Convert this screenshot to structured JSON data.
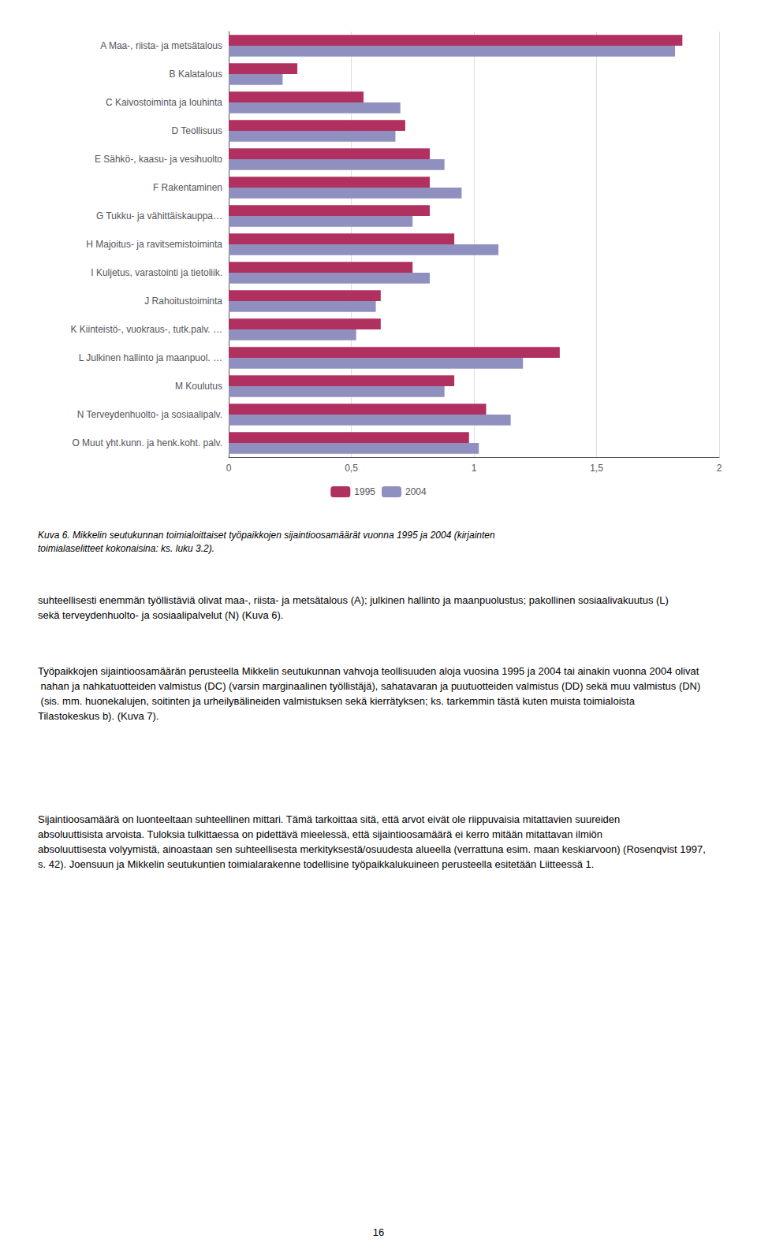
{
  "chart_data": {
    "type": "bar",
    "orientation": "horizontal",
    "categories": [
      "A Maa-, riista- ja metsätalous",
      "B Kalatalous",
      "C Kaivostoiminta ja louhinta",
      "D Teollisuus",
      "E Sähkö-, kaasu- ja vesihuolto",
      "F Rakentaminen",
      "G Tukku- ja vähittäiskauppa…",
      "H Majoitus- ja ravitsemistoiminta",
      "I Kuljetus, varastointi ja tietoliik.",
      "J Rahoitustoiminta",
      "K Kiinteistö-, vuokraus-, tutk.palv. …",
      "L Julkinen hallinto ja maanpuol. …",
      "M Koulutus",
      "N Terveydenhuolto- ja sosiaalipalv.",
      "O Muut yht.kunn. ja henk.koht. palv."
    ],
    "series": [
      {
        "name": "1995",
        "color": "#b03060",
        "values": [
          1.85,
          0.28,
          0.55,
          0.72,
          0.82,
          0.82,
          0.82,
          0.92,
          0.75,
          0.62,
          0.62,
          1.35,
          0.92,
          1.05,
          0.98
        ]
      },
      {
        "name": "2004",
        "color": "#9090c0",
        "values": [
          1.82,
          0.22,
          0.7,
          0.68,
          0.88,
          0.95,
          0.75,
          1.1,
          0.82,
          0.6,
          0.52,
          1.2,
          0.88,
          1.15,
          1.02
        ]
      }
    ],
    "xlim": [
      0,
      2
    ],
    "xticks": [
      0,
      {
        "value": 0.5,
        "label": "0,5"
      },
      1,
      {
        "value": 1.5,
        "label": "1,5"
      },
      2
    ],
    "grid": true,
    "legend": "bottom",
    "annotations": [
      "Kuva 6. Mikkelin seutukunnan toimialoittaiset työpaikkojen sijaintioosamäärät vuonna 1995 ja 2004 (kirjainten toimialaselitteet kokonaisina: ks. luku 3.2).",
      "suhteellisesti enemmän työllistäviä olivat maa-, riista- ja metsätalous (A); julkinen hallinto ja maanpuolustus; pakollinen sosiaalivakuutus (L) sekä terveydenhuolto- ja sosiaalipalvelut (N) (Kuva 6).",
      "Työpaikkojen sijaintioosamäärän perusteella Mikkelin seutukunnan vahvoja teollisuuden aloja vuosina 1995 ja 2004 tai ainakin vuonna 2004 olivat nahan ja nahkatuotteiden valmistus (DC) (varsin marginaalinen työllistäjä), sahatavaran ja puutuotteiden valmistus (DD) sekä muu valmistus (DN) (sis. mm. huonekalujen, soitinten ja urheilувälineiden valmistuksen sekä kierrätyksen; ks. tarkemmin tästä kuten muista toimialoista Tilastokeskus b). (Kuva 7).",
      "Sijaintioosamäärä on luonteeltaan suhteellinen mittari. Tämä tarkoittaa sitä, että arvot eivät ole riippuvaisia mitattavien suureiden absoluuttisista arvoista. Tuloksia tulkittaessa on pidettävä mieelessä, että sijaintioosamäärä ei kerro mitään mitattavan ilmiön absoluuttisesta volyymistä, ainoastaan sen suhteellisesta merkityksestä/osuudesta alueella (verrattuna esim. maan keskiarvoon) (Rosenqvist 1997, s. 42). Joensuun ja Mikkelin seutukuntien toimialarakenne todellisine työpaikkalukuineen perusteella esitetään Liitteessä 1.",
      "16"
    ]
  }
}
